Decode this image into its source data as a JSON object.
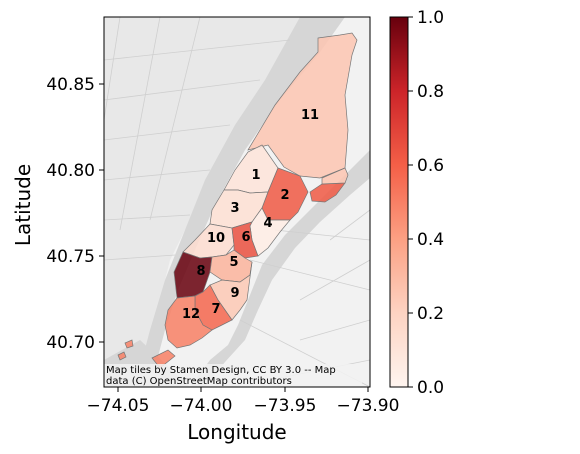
{
  "map": {
    "attribution_line1": "Map tiles by Stamen Design, CC BY 3.0 -- Map",
    "attribution_line2": "data (C) OpenStreetMap contributors",
    "xlabel": "Longitude",
    "ylabel": "Latitude",
    "xticks": [
      "−74.05",
      "−74.00",
      "−73.95",
      "−73.90"
    ],
    "yticks": [
      "40.85",
      "40.80",
      "40.75",
      "40.70"
    ],
    "colorbar_ticks": [
      "1.0",
      "0.8",
      "0.6",
      "0.4",
      "0.2",
      "0.0"
    ],
    "colormap": "Reds",
    "colors": {
      "low": "#fff5f0",
      "mid": "#fb6a4a",
      "high": "#67000d",
      "water": "#d4d4d4",
      "land": "#f4f4f4"
    },
    "regions": [
      {
        "id": "1",
        "value": 0.1
      },
      {
        "id": "2",
        "value": 0.62
      },
      {
        "id": "3",
        "value": 0.12
      },
      {
        "id": "4",
        "value": 0.05
      },
      {
        "id": "5",
        "value": 0.32
      },
      {
        "id": "6",
        "value": 0.65
      },
      {
        "id": "7",
        "value": 0.58
      },
      {
        "id": "8",
        "value": 1.0
      },
      {
        "id": "9",
        "value": 0.24
      },
      {
        "id": "10",
        "value": 0.14
      },
      {
        "id": "11",
        "value": 0.25
      },
      {
        "id": "12",
        "value": 0.5
      }
    ]
  }
}
